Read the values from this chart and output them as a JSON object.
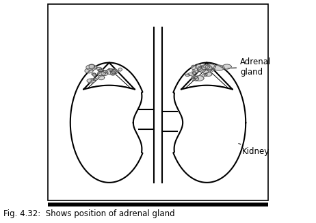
{
  "title": "Fig. 4.32:  Shows position of adrenal gland",
  "label_adrenal": "Adrenal\ngland",
  "label_kidney": "Kidney",
  "bg_color": "#ffffff",
  "line_color": "#000000",
  "fig_width": 4.62,
  "fig_height": 3.26
}
